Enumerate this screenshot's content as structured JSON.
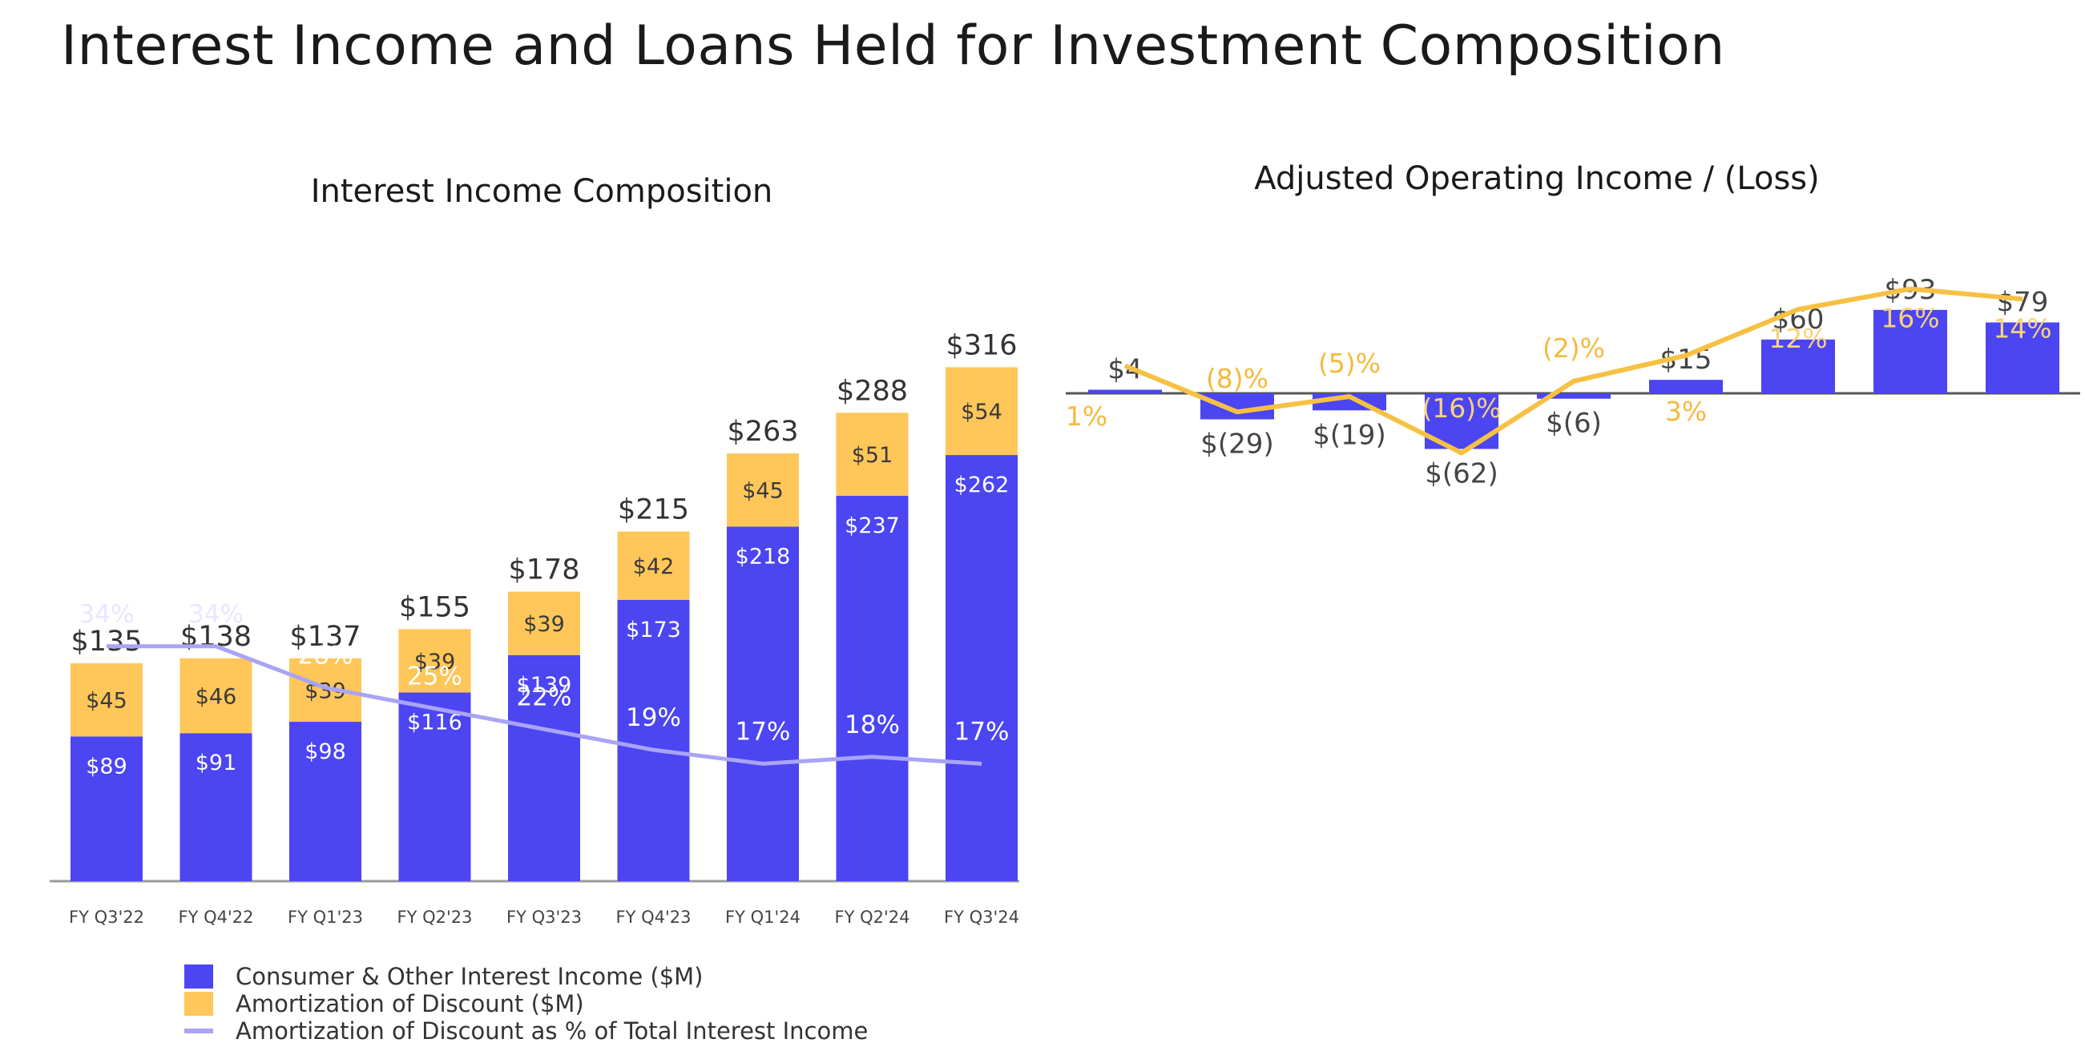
{
  "title": "Interest Income and Loans Held for Investment Composition",
  "colors": {
    "consumer": "#4B45F2",
    "amortization": "#FFC659",
    "pct_line": "#A9A4F5",
    "operating_line": "#F6C143",
    "pct_label_right": "#F6B93B"
  },
  "chart_data": [
    {
      "type": "bar",
      "stacked": true,
      "title": "Interest Income Composition",
      "categories": [
        "FY Q3'22",
        "FY Q4'22",
        "FY Q1'23",
        "FY Q2'23",
        "FY Q3'23",
        "FY Q4'23",
        "FY Q1'24",
        "FY Q2'24",
        "FY Q3'24"
      ],
      "totals": [
        "$135",
        "$138",
        "$137",
        "$155",
        "$178",
        "$215",
        "$263",
        "$288",
        "$316"
      ],
      "series": [
        {
          "name": "Consumer & Other Interest Income ($M)",
          "values": [
            89,
            91,
            98,
            116,
            139,
            173,
            218,
            237,
            262
          ],
          "labels": [
            "$89",
            "$91",
            "$98",
            "$116",
            "$139",
            "$173",
            "$218",
            "$237",
            "$262"
          ]
        },
        {
          "name": "Amortization of Discount ($M)",
          "values": [
            45,
            46,
            39,
            39,
            39,
            42,
            45,
            51,
            54
          ],
          "labels": [
            "$45",
            "$46",
            "$39",
            "$39",
            "$39",
            "$42",
            "$45",
            "$51",
            "$54"
          ]
        },
        {
          "name": "Amortization of Discount as % of Total Interest Income",
          "type": "line",
          "values": [
            34,
            34,
            28,
            25,
            22,
            19,
            17,
            18,
            17
          ],
          "labels": [
            "34%",
            "34%",
            "28%",
            "25%",
            "22%",
            "19%",
            "17%",
            "18%",
            "17%"
          ]
        }
      ],
      "legend": [
        "Consumer & Other Interest Income ($M)",
        "Amortization of Discount ($M)",
        "Amortization of Discount as % of Total Interest Income"
      ],
      "legend_position": "bottom-left",
      "ylim": [
        0,
        330
      ],
      "pct_ylim": [
        0,
        80
      ],
      "grid": false
    },
    {
      "type": "bar",
      "title": "Adjusted Operating Income / (Loss)",
      "categories": [
        "FY Q3'22",
        "FY Q4'22",
        "FY Q1'23",
        "FY Q2'23",
        "FY Q3'23",
        "FY Q4'23",
        "FY Q1'24",
        "FY Q2'24",
        "FY Q3'24"
      ],
      "values": [
        4,
        -29,
        -19,
        -62,
        -6,
        15,
        60,
        93,
        79
      ],
      "value_labels": [
        "$4",
        "$(29)",
        "$(19)",
        "$(62)",
        "$(6)",
        "$15",
        "$60",
        "$93",
        "$79"
      ],
      "margin_pct": [
        1,
        -8,
        -5,
        -16,
        -2,
        3,
        12,
        16,
        14
      ],
      "margin_labels": [
        "1%",
        "(8)%",
        "(5)%",
        "(16)%",
        "(2)%",
        "3%",
        "12%",
        "16%",
        "14%"
      ],
      "ylim": [
        -62,
        93
      ],
      "grid": false
    }
  ]
}
